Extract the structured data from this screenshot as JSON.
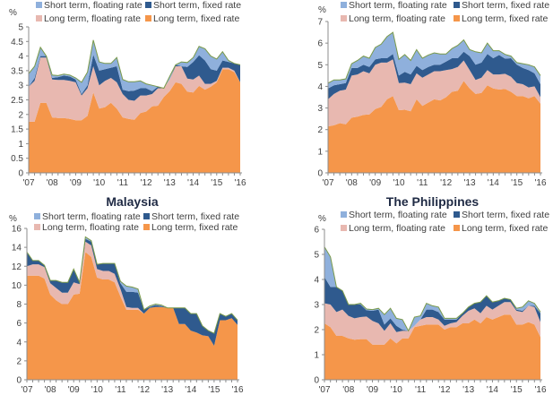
{
  "legend": {
    "short_floating": "Short term, floating rate",
    "short_fixed": "Short term, fixed rate",
    "long_floating": "Long term, floating rate",
    "long_fixed": "Long term, fixed rate"
  },
  "colors": {
    "long_fixed": "#f5964a",
    "long_floating": "#e8b8b0",
    "short_fixed": "#2f5a8e",
    "short_floating": "#8fb0dc",
    "edge": "#7a9a4a"
  },
  "chart_data": [
    {
      "type": "area",
      "stacked": true,
      "title": "",
      "ylabel": "%",
      "xlabel": "",
      "ylim": [
        0,
        5
      ],
      "yticks": [
        "0",
        "0.5",
        "1",
        "1.5",
        "2",
        "2.5",
        "3",
        "3.5",
        "4",
        "4.5",
        "5"
      ],
      "xticks": [
        "'07",
        "'08",
        "'09",
        "'10",
        "'11",
        "'12",
        "'13",
        "'14",
        "'15",
        "'16"
      ],
      "legend_position": "top",
      "x": [
        2007.0,
        2007.25,
        2007.5,
        2007.75,
        2008.0,
        2008.25,
        2008.5,
        2008.75,
        2009.0,
        2009.25,
        2009.5,
        2009.75,
        2010.0,
        2010.25,
        2010.5,
        2010.75,
        2011.0,
        2011.25,
        2011.5,
        2011.75,
        2012.0,
        2012.25,
        2012.5,
        2012.75,
        2013.0,
        2013.25,
        2013.5,
        2013.75,
        2014.0,
        2014.25,
        2014.5,
        2014.75,
        2015.0,
        2015.25,
        2015.5,
        2015.75,
        2016.0
      ],
      "series": [
        {
          "name": "Long term, fixed rate",
          "key": "long_fixed",
          "values": [
            1.75,
            1.75,
            2.4,
            2.4,
            1.9,
            1.88,
            1.88,
            1.85,
            1.8,
            1.8,
            1.95,
            2.75,
            2.2,
            2.25,
            2.4,
            2.2,
            1.9,
            1.85,
            1.82,
            2.05,
            2.1,
            2.28,
            2.3,
            2.6,
            2.8,
            3.1,
            3.05,
            2.78,
            2.75,
            2.98,
            2.85,
            2.95,
            3.1,
            3.55,
            3.55,
            3.45,
            3.1
          ]
        },
        {
          "name": "Long term, floating rate",
          "key": "long_floating",
          "values": [
            1.2,
            1.4,
            1.55,
            1.55,
            1.3,
            1.3,
            1.3,
            1.3,
            1.3,
            0.85,
            0.95,
            0.9,
            0.8,
            0.9,
            0.85,
            0.9,
            0.8,
            0.65,
            0.65,
            0.6,
            0.55,
            0.42,
            0.6,
            0.3,
            0.4,
            0.55,
            0.6,
            0.45,
            0.45,
            0.35,
            0.2,
            0.1,
            0.05,
            0.05,
            0.05,
            0.05,
            0.0
          ]
        },
        {
          "name": "Short term, fixed rate",
          "key": "short_fixed",
          "values": [
            0.0,
            0.1,
            0.05,
            0.05,
            0.05,
            0.1,
            0.15,
            0.15,
            0.1,
            0.05,
            0.1,
            0.4,
            0.5,
            0.4,
            0.35,
            0.55,
            0.15,
            0.3,
            0.35,
            0.25,
            0.25,
            0.1,
            0.05,
            0.0,
            0.0,
            0.05,
            0.0,
            0.4,
            0.6,
            0.7,
            0.8,
            0.5,
            0.35,
            0.25,
            0.2,
            0.25,
            0.6
          ]
        },
        {
          "name": "Short term, floating rate",
          "key": "short_floating",
          "values": [
            0.45,
            0.4,
            0.3,
            0.0,
            0.1,
            0.05,
            0.05,
            0.05,
            0.05,
            0.4,
            0.45,
            0.5,
            0.3,
            0.2,
            0.15,
            0.3,
            0.35,
            0.32,
            0.3,
            0.25,
            0.15,
            0.2,
            0.0,
            0.0,
            0.1,
            0.0,
            0.15,
            0.15,
            0.15,
            0.3,
            0.4,
            0.45,
            0.4,
            0.3,
            0.05,
            0.0,
            0.0
          ]
        }
      ]
    },
    {
      "type": "area",
      "stacked": true,
      "title": "",
      "ylabel": "%",
      "xlabel": "",
      "ylim": [
        0,
        7
      ],
      "yticks": [
        "0",
        "1",
        "2",
        "3",
        "4",
        "5",
        "6",
        "7"
      ],
      "xticks": [
        "'07",
        "'08",
        "'09",
        "'10",
        "'11",
        "'12",
        "'13",
        "'14",
        "'15",
        "'16"
      ],
      "legend_position": "top",
      "x": [
        2007.0,
        2007.25,
        2007.5,
        2007.75,
        2008.0,
        2008.25,
        2008.5,
        2008.75,
        2009.0,
        2009.25,
        2009.5,
        2009.75,
        2010.0,
        2010.25,
        2010.5,
        2010.75,
        2011.0,
        2011.25,
        2011.5,
        2011.75,
        2012.0,
        2012.25,
        2012.5,
        2012.75,
        2013.0,
        2013.25,
        2013.5,
        2013.75,
        2014.0,
        2014.25,
        2014.5,
        2014.75,
        2015.0,
        2015.25,
        2015.5,
        2015.75,
        2016.0
      ],
      "series": [
        {
          "name": "Long term, fixed rate",
          "key": "long_fixed",
          "values": [
            2.15,
            2.2,
            2.3,
            2.25,
            2.55,
            2.6,
            2.68,
            2.7,
            2.95,
            3.05,
            3.4,
            3.55,
            2.9,
            2.92,
            2.85,
            3.4,
            3.1,
            3.25,
            3.4,
            3.35,
            3.5,
            3.75,
            3.8,
            4.25,
            3.9,
            3.65,
            3.7,
            4.05,
            3.9,
            3.85,
            3.88,
            3.75,
            3.55,
            3.55,
            3.45,
            3.55,
            3.2
          ]
        },
        {
          "name": "Long term, floating rate",
          "key": "long_floating",
          "values": [
            1.25,
            1.45,
            1.5,
            1.6,
            1.95,
            1.95,
            2.02,
            1.9,
            2.05,
            2.05,
            1.7,
            1.7,
            1.25,
            1.25,
            1.25,
            1.2,
            1.3,
            1.3,
            1.3,
            1.35,
            1.25,
            1.05,
            1.1,
            0.95,
            0.85,
            0.65,
            0.7,
            0.7,
            0.65,
            0.7,
            0.7,
            0.7,
            0.6,
            0.55,
            0.5,
            0.45,
            0.3
          ]
        },
        {
          "name": "Short term, fixed rate",
          "key": "short_fixed",
          "values": [
            0.5,
            0.4,
            0.3,
            0.3,
            0.35,
            0.3,
            0.3,
            0.3,
            0.25,
            0.2,
            0.2,
            0.25,
            0.35,
            0.5,
            0.45,
            0.35,
            0.35,
            0.35,
            0.3,
            0.3,
            0.4,
            0.5,
            0.4,
            0.4,
            0.65,
            0.7,
            0.7,
            0.75,
            0.75,
            0.9,
            0.7,
            0.85,
            0.85,
            0.75,
            0.8,
            0.6,
            0.6
          ]
        },
        {
          "name": "Short term, floating rate",
          "key": "short_floating",
          "values": [
            0.25,
            0.25,
            0.2,
            0.2,
            0.2,
            0.35,
            0.4,
            0.4,
            0.55,
            0.65,
            1.0,
            1.0,
            0.75,
            0.8,
            0.65,
            0.75,
            0.55,
            0.55,
            0.55,
            0.5,
            0.35,
            0.45,
            0.6,
            0.55,
            0.3,
            0.6,
            0.45,
            0.5,
            0.35,
            0.2,
            0.2,
            0.1,
            0.1,
            0.2,
            0.25,
            0.3,
            0.4
          ]
        }
      ]
    },
    {
      "type": "area",
      "stacked": true,
      "title": "Malaysia",
      "ylabel": "%",
      "xlabel": "",
      "ylim": [
        0,
        16
      ],
      "yticks": [
        "0",
        "2",
        "4",
        "6",
        "8",
        "10",
        "12",
        "14",
        "16"
      ],
      "xticks": [
        "'07",
        "'08",
        "'09",
        "'10",
        "'11",
        "'12",
        "'13",
        "'14",
        "'15",
        "'16"
      ],
      "legend_position": "top",
      "x": [
        2007.0,
        2007.25,
        2007.5,
        2007.75,
        2008.0,
        2008.25,
        2008.5,
        2008.75,
        2009.0,
        2009.25,
        2009.5,
        2009.75,
        2010.0,
        2010.25,
        2010.5,
        2010.75,
        2011.0,
        2011.25,
        2011.5,
        2011.75,
        2012.0,
        2012.25,
        2012.5,
        2012.75,
        2013.0,
        2013.25,
        2013.5,
        2013.75,
        2014.0,
        2014.25,
        2014.5,
        2014.75,
        2015.0,
        2015.25,
        2015.5,
        2015.75,
        2016.0
      ],
      "series": [
        {
          "name": "Long term, fixed rate",
          "key": "long_fixed",
          "values": [
            11.0,
            11.0,
            11.0,
            10.7,
            9.0,
            8.4,
            8.0,
            8.0,
            9.0,
            9.1,
            13.5,
            13.0,
            10.8,
            10.6,
            10.6,
            10.3,
            8.8,
            7.4,
            7.4,
            7.4,
            7.0,
            7.6,
            7.7,
            7.7,
            7.6,
            7.6,
            5.9,
            5.9,
            5.2,
            5.0,
            4.7,
            4.6,
            3.6,
            6.3,
            6.3,
            6.5,
            5.8
          ]
        },
        {
          "name": "Long term, floating rate",
          "key": "long_floating",
          "values": [
            1.0,
            1.2,
            1.2,
            1.2,
            1.2,
            1.3,
            1.2,
            1.2,
            1.3,
            1.0,
            1.1,
            1.2,
            0.9,
            0.9,
            0.9,
            0.9,
            0.8,
            0.3,
            0.2,
            0.2,
            0.0,
            0.0,
            0.0,
            0.0,
            0.0,
            0.0,
            0.0,
            0.0,
            0.0,
            0.0,
            0.0,
            0.0,
            0.0,
            0.0,
            0.0,
            0.0,
            0.0
          ]
        },
        {
          "name": "Short term, fixed rate",
          "key": "short_fixed",
          "values": [
            1.5,
            0.4,
            0.4,
            0.2,
            0.3,
            0.8,
            1.1,
            1.1,
            1.4,
            0.2,
            0.3,
            0.4,
            0.5,
            0.8,
            0.8,
            1.1,
            0.6,
            1.6,
            1.7,
            1.6,
            0.4,
            0.1,
            0.2,
            0.1,
            0.0,
            0.0,
            1.7,
            1.7,
            1.8,
            2.0,
            1.0,
            0.6,
            1.3,
            0.7,
            0.4,
            0.5,
            0.5
          ]
        },
        {
          "name": "Short term, floating rate",
          "key": "short_floating",
          "values": [
            0.0,
            0.0,
            0.0,
            0.0,
            0.0,
            0.0,
            0.0,
            0.0,
            0.0,
            0.0,
            0.2,
            0.1,
            0.0,
            0.0,
            0.0,
            0.0,
            0.2,
            0.6,
            0.5,
            0.4,
            0.0,
            0.1,
            0.1,
            0.1,
            0.0,
            0.0,
            0.0,
            0.0,
            0.0,
            0.0,
            0.0,
            0.0,
            0.0,
            0.0,
            0.0,
            0.0,
            0.0
          ]
        }
      ]
    },
    {
      "type": "area",
      "stacked": true,
      "title": "The Philippines",
      "ylabel": "%",
      "xlabel": "",
      "ylim": [
        0,
        6
      ],
      "yticks": [
        "0",
        "1",
        "2",
        "3",
        "4",
        "5",
        "6"
      ],
      "xticks": [
        "'07",
        "'08",
        "'09",
        "'10",
        "'11",
        "'12",
        "'13",
        "'14",
        "'15",
        "'16"
      ],
      "legend_position": "top",
      "x": [
        2007.0,
        2007.25,
        2007.5,
        2007.75,
        2008.0,
        2008.25,
        2008.5,
        2008.75,
        2009.0,
        2009.25,
        2009.5,
        2009.75,
        2010.0,
        2010.25,
        2010.5,
        2010.75,
        2011.0,
        2011.25,
        2011.5,
        2011.75,
        2012.0,
        2012.25,
        2012.5,
        2012.75,
        2013.0,
        2013.25,
        2013.5,
        2013.75,
        2014.0,
        2014.25,
        2014.5,
        2014.75,
        2015.0,
        2015.25,
        2015.5,
        2015.75,
        2016.0
      ],
      "series": [
        {
          "name": "Long term, fixed rate",
          "key": "long_fixed",
          "values": [
            2.25,
            2.1,
            1.75,
            1.75,
            1.65,
            1.6,
            1.62,
            1.62,
            1.4,
            1.4,
            1.4,
            1.65,
            1.45,
            1.65,
            1.65,
            2.1,
            2.15,
            2.2,
            2.2,
            2.2,
            2.0,
            2.1,
            2.1,
            2.25,
            2.25,
            2.4,
            2.25,
            2.5,
            2.4,
            2.5,
            2.6,
            2.6,
            2.2,
            2.2,
            2.3,
            2.2,
            1.7
          ]
        },
        {
          "name": "Long term, floating rate",
          "key": "long_floating",
          "values": [
            0.8,
            0.9,
            0.95,
            1.05,
            0.9,
            0.85,
            0.88,
            0.9,
            0.95,
            0.85,
            0.55,
            0.6,
            0.45,
            0.3,
            0.3,
            0.05,
            0.25,
            0.3,
            0.3,
            0.2,
            0.15,
            0.15,
            0.2,
            0.3,
            0.5,
            0.45,
            0.4,
            0.45,
            0.4,
            0.45,
            0.5,
            0.5,
            0.55,
            0.5,
            0.65,
            0.7,
            0.6
          ]
        },
        {
          "name": "Short term, fixed rate",
          "key": "short_fixed",
          "values": [
            1.05,
            0.7,
            1.0,
            0.75,
            0.45,
            0.55,
            0.5,
            0.25,
            0.4,
            0.55,
            0.25,
            0.2,
            0.25,
            0.05,
            0.0,
            0.0,
            0.0,
            0.3,
            0.3,
            0.3,
            0.25,
            0.15,
            0.1,
            0.1,
            0.15,
            0.2,
            0.45,
            0.4,
            0.3,
            0.2,
            0.15,
            0.1,
            0.05,
            0.05,
            0.0,
            0.05,
            0.35
          ]
        },
        {
          "name": "Short term, floating rate",
          "key": "short_floating",
          "values": [
            1.2,
            1.2,
            0.0,
            0.0,
            0.0,
            0.0,
            0.05,
            0.05,
            0.05,
            0.05,
            0.4,
            0.4,
            0.3,
            0.4,
            0.0,
            0.35,
            0.15,
            0.25,
            0.15,
            0.2,
            0.05,
            0.05,
            0.05,
            0.0,
            0.0,
            0.0,
            0.0,
            0.0,
            0.0,
            0.0,
            0.0,
            0.0,
            0.05,
            0.15,
            0.2,
            0.1,
            0.05
          ]
        }
      ]
    }
  ]
}
